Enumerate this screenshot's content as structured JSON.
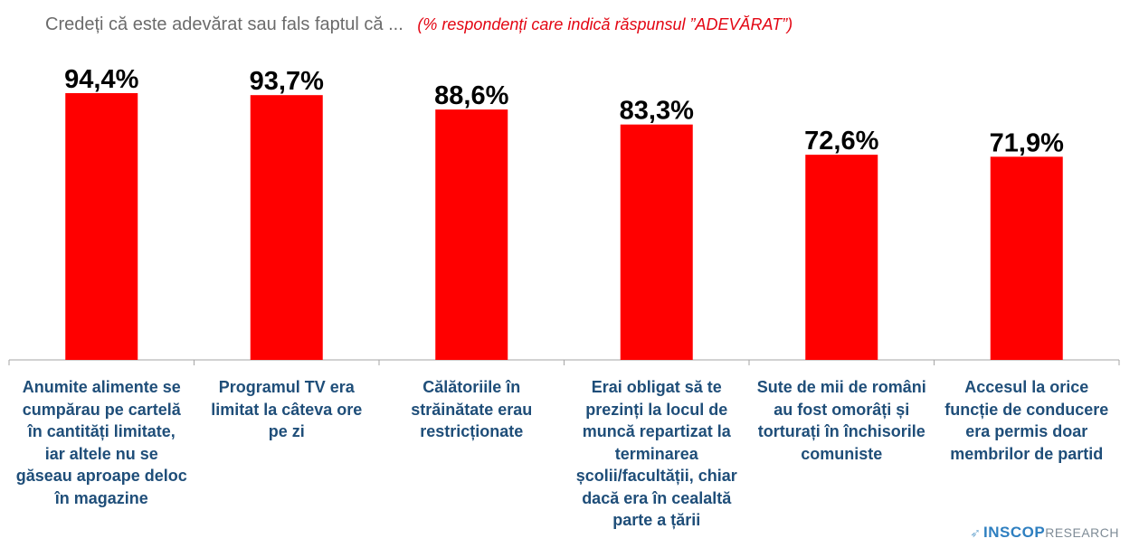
{
  "title": {
    "main": "Credeți că este adevărat sau fals faptul că ...",
    "sub": "(% respondenți care indică răspunsul ”ADEVĂRAT”)"
  },
  "chart_data": {
    "type": "bar",
    "categories": [
      "Anumite alimente se cumpărau pe cartelă în cantități limitate, iar altele nu se găseau aproape deloc în magazine",
      "Programul TV era limitat la câteva ore pe zi",
      "Călătoriile în străinătate erau restricționate",
      "Erai obligat să te prezinți la locul de muncă repartizat la terminarea școlii/facultății, chiar dacă era în cealaltă parte a țării",
      "Sute de mii de români au fost omorâți și torturați în închisorile comuniste",
      "Accesul la orice funcție de conducere era permis doar membrilor de partid"
    ],
    "values": [
      94.4,
      93.7,
      88.6,
      83.3,
      72.6,
      71.9
    ],
    "value_labels": [
      "94,4%",
      "93,7%",
      "88,6%",
      "83,3%",
      "72,6%",
      "71,9%"
    ],
    "ylim": [
      0,
      100
    ],
    "grid": false,
    "legend": "none",
    "bar_color": "#ff0000"
  },
  "logo": {
    "brand": "INSCOP",
    "brand2": "RESEARCH",
    "icon": "bird-icon"
  }
}
